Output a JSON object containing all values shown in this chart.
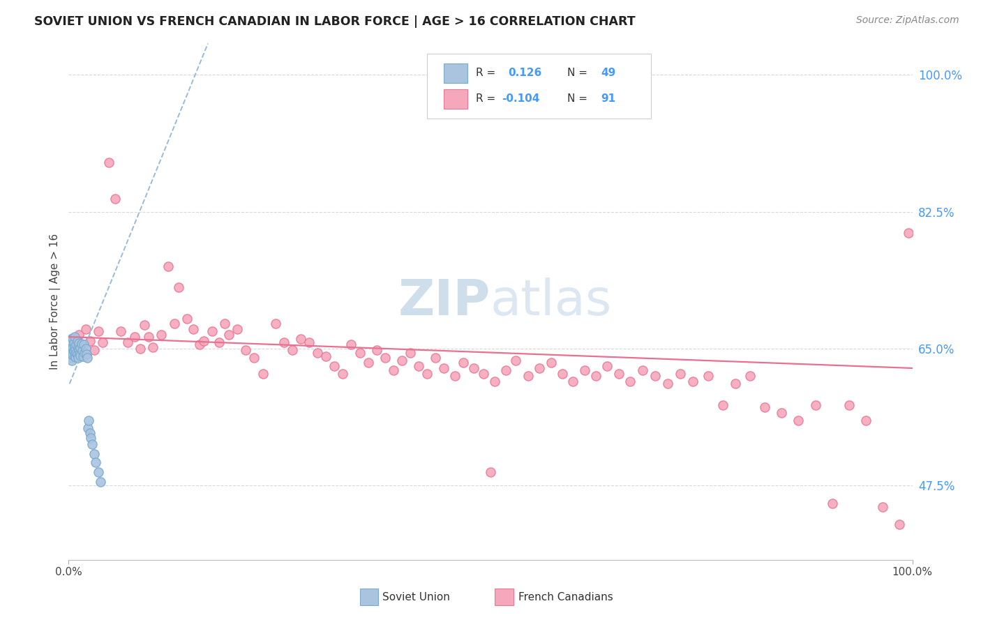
{
  "title": "SOVIET UNION VS FRENCH CANADIAN IN LABOR FORCE | AGE > 16 CORRELATION CHART",
  "source": "Source: ZipAtlas.com",
  "ylabel": "In Labor Force | Age > 16",
  "R_soviet": 0.126,
  "N_soviet": 49,
  "R_french": -0.104,
  "N_french": 91,
  "soviet_fill": "#aac4e0",
  "soviet_edge": "#7aaad0",
  "french_fill": "#f5a8bb",
  "french_edge": "#e87898",
  "trend_soviet_color": "#99bbd8",
  "trend_french_color": "#e87090",
  "watermark_zip_color": "#b8cfe0",
  "watermark_atlas_color": "#c8dae8",
  "background_color": "#ffffff",
  "grid_color": "#d8d8d8",
  "ytick_values": [
    0.475,
    0.65,
    0.825,
    1.0
  ],
  "ytick_color": "#4499ff",
  "axis_label_color": "#444444",
  "title_color": "#222222",
  "source_color": "#888888",
  "legend_edge_color": "#cccccc",
  "soviet_x": [
    0.001,
    0.001,
    0.002,
    0.002,
    0.002,
    0.003,
    0.003,
    0.003,
    0.004,
    0.004,
    0.004,
    0.005,
    0.005,
    0.005,
    0.006,
    0.006,
    0.007,
    0.007,
    0.007,
    0.008,
    0.008,
    0.009,
    0.009,
    0.01,
    0.01,
    0.011,
    0.011,
    0.012,
    0.012,
    0.013,
    0.014,
    0.014,
    0.015,
    0.016,
    0.017,
    0.018,
    0.019,
    0.02,
    0.021,
    0.022,
    0.023,
    0.024,
    0.025,
    0.026,
    0.028,
    0.03,
    0.032,
    0.035,
    0.038
  ],
  "soviet_y": [
    0.65,
    0.64,
    0.66,
    0.645,
    0.655,
    0.648,
    0.638,
    0.662,
    0.644,
    0.658,
    0.635,
    0.652,
    0.642,
    0.663,
    0.647,
    0.657,
    0.641,
    0.653,
    0.665,
    0.649,
    0.639,
    0.655,
    0.645,
    0.66,
    0.643,
    0.652,
    0.638,
    0.657,
    0.648,
    0.644,
    0.651,
    0.641,
    0.656,
    0.647,
    0.64,
    0.655,
    0.645,
    0.65,
    0.643,
    0.638,
    0.548,
    0.558,
    0.542,
    0.536,
    0.528,
    0.515,
    0.505,
    0.492,
    0.48
  ],
  "french_x": [
    0.008,
    0.012,
    0.016,
    0.02,
    0.025,
    0.03,
    0.035,
    0.04,
    0.048,
    0.055,
    0.062,
    0.07,
    0.078,
    0.085,
    0.09,
    0.095,
    0.1,
    0.11,
    0.118,
    0.125,
    0.13,
    0.14,
    0.148,
    0.155,
    0.16,
    0.17,
    0.178,
    0.185,
    0.19,
    0.2,
    0.21,
    0.22,
    0.23,
    0.245,
    0.255,
    0.265,
    0.275,
    0.285,
    0.295,
    0.305,
    0.315,
    0.325,
    0.335,
    0.345,
    0.355,
    0.365,
    0.375,
    0.385,
    0.395,
    0.405,
    0.415,
    0.425,
    0.435,
    0.445,
    0.458,
    0.468,
    0.48,
    0.492,
    0.505,
    0.518,
    0.53,
    0.545,
    0.558,
    0.572,
    0.585,
    0.598,
    0.612,
    0.625,
    0.638,
    0.652,
    0.665,
    0.68,
    0.695,
    0.71,
    0.725,
    0.74,
    0.758,
    0.775,
    0.79,
    0.808,
    0.825,
    0.845,
    0.865,
    0.885,
    0.905,
    0.925,
    0.945,
    0.965,
    0.985,
    0.995,
    0.5
  ],
  "french_y": [
    0.655,
    0.668,
    0.645,
    0.675,
    0.66,
    0.648,
    0.672,
    0.658,
    0.888,
    0.842,
    0.672,
    0.658,
    0.665,
    0.65,
    0.68,
    0.665,
    0.652,
    0.668,
    0.755,
    0.682,
    0.728,
    0.688,
    0.675,
    0.655,
    0.66,
    0.672,
    0.658,
    0.682,
    0.668,
    0.675,
    0.648,
    0.638,
    0.618,
    0.682,
    0.658,
    0.648,
    0.662,
    0.658,
    0.645,
    0.64,
    0.628,
    0.618,
    0.655,
    0.645,
    0.632,
    0.648,
    0.638,
    0.622,
    0.635,
    0.645,
    0.628,
    0.618,
    0.638,
    0.625,
    0.615,
    0.632,
    0.625,
    0.618,
    0.608,
    0.622,
    0.635,
    0.615,
    0.625,
    0.632,
    0.618,
    0.608,
    0.622,
    0.615,
    0.628,
    0.618,
    0.608,
    0.622,
    0.615,
    0.605,
    0.618,
    0.608,
    0.615,
    0.578,
    0.605,
    0.615,
    0.575,
    0.568,
    0.558,
    0.578,
    0.452,
    0.578,
    0.558,
    0.448,
    0.425,
    0.798,
    0.492
  ]
}
